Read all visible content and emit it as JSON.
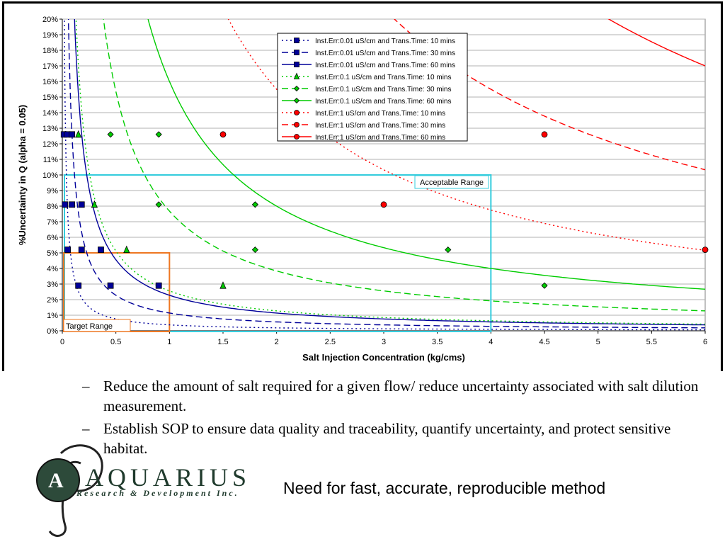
{
  "chart_data": {
    "type": "line",
    "title": "",
    "xlabel": "Salt Injection Concentration (kg/cms)",
    "ylabel": "%Uncertainty in Q (alpha = 0.05)",
    "xlim": [
      0,
      6
    ],
    "ylim": [
      0,
      20
    ],
    "x_ticks": [
      "0",
      "0.5",
      "1",
      "1.5",
      "2",
      "2.5",
      "3",
      "3.5",
      "4",
      "4.5",
      "5",
      "5.5",
      "6"
    ],
    "y_ticks": [
      "0%",
      "1%",
      "2%",
      "3%",
      "4%",
      "5%",
      "6%",
      "7%",
      "8%",
      "9%",
      "10%",
      "11%",
      "12%",
      "13%",
      "14%",
      "15%",
      "16%",
      "17%",
      "18%",
      "19%",
      "20%"
    ],
    "grid": "horizontal",
    "legend_position": "top-center",
    "series": [
      {
        "name": "Inst.Err:0.01 uS/cm and Trans.Time: 10 mins",
        "color": "#000099",
        "dash": "dotted",
        "marker": "square",
        "k": 0.38,
        "points": [
          [
            0.015,
            12.6
          ],
          [
            0.025,
            8.1
          ],
          [
            0.05,
            5.2
          ],
          [
            0.15,
            2.9
          ]
        ]
      },
      {
        "name": "Inst.Err:0.01 uS/cm and Trans.Time: 30 mins",
        "color": "#000099",
        "dash": "dashed",
        "marker": "square",
        "k": 1.14,
        "points": [
          [
            0.045,
            12.6
          ],
          [
            0.09,
            8.1
          ],
          [
            0.18,
            5.2
          ],
          [
            0.45,
            2.9
          ]
        ]
      },
      {
        "name": "Inst.Err:0.01 uS/cm and Trans.Time: 60 mins",
        "color": "#000099",
        "dash": "solid",
        "marker": "square",
        "k": 2.28,
        "points": [
          [
            0.09,
            12.6
          ],
          [
            0.18,
            8.1
          ],
          [
            0.36,
            5.2
          ],
          [
            0.9,
            2.9
          ]
        ]
      },
      {
        "name": "Inst.Err:0.1 uS/cm and Trans.Time: 10 mins",
        "color": "#00cc00",
        "dash": "dotted",
        "marker": "triangle",
        "k": 2.56,
        "points": [
          [
            0.15,
            12.6
          ],
          [
            0.3,
            8.1
          ],
          [
            0.6,
            5.2
          ],
          [
            1.5,
            2.9
          ]
        ]
      },
      {
        "name": "Inst.Err:0.1 uS/cm and Trans.Time: 30 mins",
        "color": "#00cc00",
        "dash": "dashed",
        "marker": "diamond",
        "k": 7.68,
        "points": [
          [
            0.45,
            12.6
          ],
          [
            0.9,
            8.1
          ],
          [
            1.8,
            5.2
          ],
          [
            4.5,
            2.9
          ]
        ]
      },
      {
        "name": "Inst.Err:0.1 uS/cm and Trans.Time: 60 mins",
        "color": "#00cc00",
        "dash": "solid",
        "marker": "diamond",
        "k": 16.0,
        "points": [
          [
            0.9,
            12.6
          ],
          [
            1.8,
            8.1
          ],
          [
            3.6,
            5.2
          ]
        ]
      },
      {
        "name": "Inst.Err:1 uS/cm and Trans.Time: 10 mins",
        "color": "#ff0000",
        "dash": "dotted",
        "marker": "circle",
        "k": 31.0,
        "points": [
          [
            1.5,
            12.6
          ],
          [
            3.0,
            8.1
          ],
          [
            6.0,
            5.2
          ]
        ]
      },
      {
        "name": "Inst.Err:1 uS/cm and Trans.Time: 30 mins",
        "color": "#ff0000",
        "dash": "dashed",
        "marker": "circle",
        "k": 62.0,
        "points": [
          [
            4.5,
            12.6
          ]
        ]
      },
      {
        "name": "Inst.Err:1 uS/cm and Trans.Time: 60 mins",
        "color": "#ff0000",
        "dash": "solid",
        "marker": "circle",
        "k": 102.0,
        "points": []
      }
    ],
    "annotations": [
      {
        "text": "Acceptable Range",
        "x_range": [
          0,
          4
        ],
        "y_range": [
          0,
          10
        ],
        "color": "#33ccdd"
      },
      {
        "text": "Target Range",
        "x_range": [
          0,
          1
        ],
        "y_range": [
          0,
          5
        ],
        "color": "#ee7722"
      }
    ]
  },
  "bullets": [
    {
      "dash": "–",
      "text": "Reduce the amount of salt required for a given flow/ reduce uncertainty associated with salt dilution measurement."
    },
    {
      "dash": "–",
      "text": "Establish SOP to ensure data quality and traceability, quantify uncertainty, and protect sensitive habitat."
    }
  ],
  "tagline": "Need for fast, accurate, reproducible method",
  "logo": {
    "name": "AQUARIUS",
    "subtitle": "Research & Development Inc."
  }
}
